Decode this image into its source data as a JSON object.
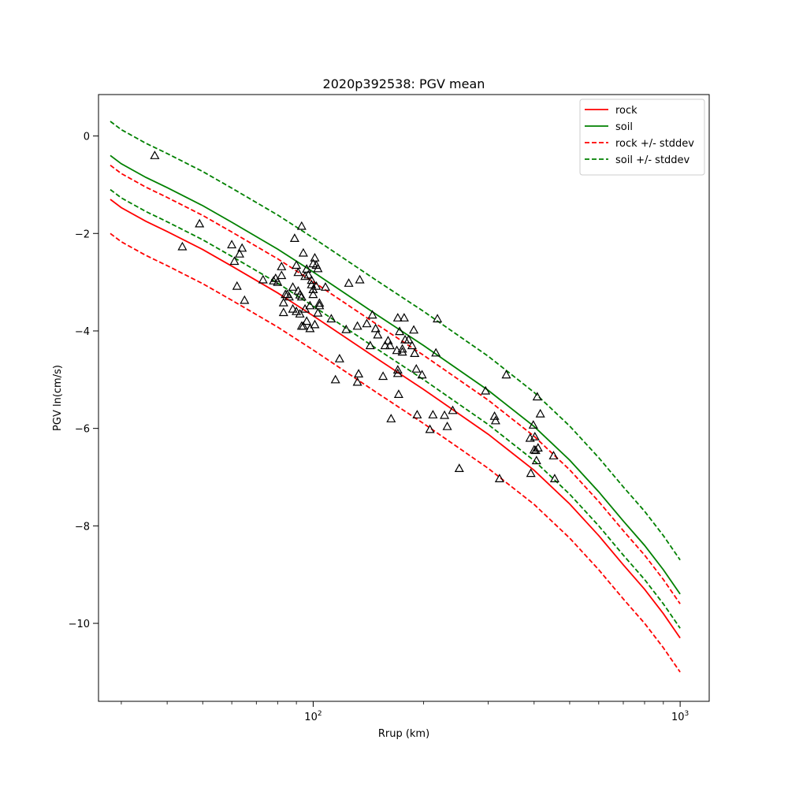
{
  "chart_data": {
    "type": "scatter",
    "title": "2020p392538: PGV mean",
    "xlabel": "Rrup (km)",
    "ylabel": "PGV ln(cm/s)",
    "xscale": "log",
    "xlim": [
      26,
      1200
    ],
    "ylim": [
      -11.6,
      0.85
    ],
    "x_ticks": [
      {
        "value": 100,
        "base": "10",
        "exp": "2"
      },
      {
        "value": 1000,
        "base": "10",
        "exp": "3"
      }
    ],
    "y_ticks": [
      {
        "value": 0,
        "label": "0"
      },
      {
        "value": -2,
        "label": "−2"
      },
      {
        "value": -4,
        "label": "−4"
      },
      {
        "value": -6,
        "label": "−6"
      },
      {
        "value": -8,
        "label": "−8"
      },
      {
        "value": -10,
        "label": "−10"
      }
    ],
    "grid": false,
    "legend_position": "top-right",
    "legend": [
      {
        "label": "rock",
        "color": "#ff0000",
        "dash": "solid"
      },
      {
        "label": "soil",
        "color": "#008000",
        "dash": "solid"
      },
      {
        "label": "rock +/- stddev",
        "color": "#ff0000",
        "dash": "dashed"
      },
      {
        "label": "soil +/- stddev",
        "color": "#008000",
        "dash": "dashed"
      }
    ],
    "lines": [
      {
        "role": "rock",
        "color": "#ff0000",
        "dash": "solid",
        "x": [
          28,
          30,
          35,
          40,
          50,
          60,
          80,
          100,
          150,
          200,
          300,
          400,
          500,
          600,
          700,
          800,
          900,
          1000
        ],
        "y": [
          -1.3,
          -1.47,
          -1.75,
          -1.96,
          -2.33,
          -2.67,
          -3.22,
          -3.69,
          -4.58,
          -5.2,
          -6.12,
          -6.86,
          -7.55,
          -8.2,
          -8.8,
          -9.3,
          -9.8,
          -10.3
        ]
      },
      {
        "role": "soil",
        "color": "#008000",
        "dash": "solid",
        "x": [
          28,
          30,
          35,
          40,
          50,
          60,
          80,
          100,
          150,
          200,
          300,
          400,
          500,
          600,
          700,
          800,
          900,
          1000
        ],
        "y": [
          -0.4,
          -0.57,
          -0.85,
          -1.06,
          -1.43,
          -1.77,
          -2.32,
          -2.79,
          -3.68,
          -4.3,
          -5.22,
          -5.96,
          -6.65,
          -7.3,
          -7.9,
          -8.4,
          -8.9,
          -9.4
        ]
      },
      {
        "role": "rock-plus-stddev",
        "color": "#ff0000",
        "dash": "dashed",
        "x": [
          28,
          30,
          35,
          40,
          50,
          60,
          80,
          100,
          150,
          200,
          300,
          400,
          500,
          600,
          700,
          800,
          900,
          1000
        ],
        "y": [
          -0.6,
          -0.77,
          -1.05,
          -1.26,
          -1.63,
          -1.97,
          -2.52,
          -2.99,
          -3.88,
          -4.5,
          -5.42,
          -6.16,
          -6.85,
          -7.5,
          -8.1,
          -8.6,
          -9.1,
          -9.6
        ]
      },
      {
        "role": "rock-minus-stddev",
        "color": "#ff0000",
        "dash": "dashed",
        "x": [
          28,
          30,
          35,
          40,
          50,
          60,
          80,
          100,
          150,
          200,
          300,
          400,
          500,
          600,
          700,
          800,
          900,
          1000
        ],
        "y": [
          -2.0,
          -2.17,
          -2.45,
          -2.66,
          -3.03,
          -3.37,
          -3.92,
          -4.39,
          -5.28,
          -5.9,
          -6.82,
          -7.56,
          -8.25,
          -8.9,
          -9.5,
          -10.0,
          -10.5,
          -11.0
        ]
      },
      {
        "role": "soil-plus-stddev",
        "color": "#008000",
        "dash": "dashed",
        "x": [
          28,
          30,
          35,
          40,
          50,
          60,
          80,
          100,
          150,
          200,
          300,
          400,
          500,
          600,
          700,
          800,
          900,
          1000
        ],
        "y": [
          0.3,
          0.13,
          -0.15,
          -0.36,
          -0.73,
          -1.07,
          -1.62,
          -2.09,
          -2.98,
          -3.6,
          -4.52,
          -5.26,
          -5.95,
          -6.6,
          -7.2,
          -7.7,
          -8.2,
          -8.7
        ]
      },
      {
        "role": "soil-minus-stddev",
        "color": "#008000",
        "dash": "dashed",
        "x": [
          28,
          30,
          35,
          40,
          50,
          60,
          80,
          100,
          150,
          200,
          300,
          400,
          500,
          600,
          700,
          800,
          900,
          1000
        ],
        "y": [
          -1.1,
          -1.27,
          -1.55,
          -1.76,
          -2.13,
          -2.47,
          -3.02,
          -3.49,
          -4.38,
          -5.0,
          -5.92,
          -6.66,
          -7.35,
          -8.0,
          -8.6,
          -9.1,
          -9.6,
          -10.1
        ]
      }
    ],
    "observations": {
      "marker": "triangle",
      "x": [
        37,
        44,
        49,
        60,
        61,
        62,
        63,
        64,
        65,
        73,
        78,
        79,
        80,
        82,
        82,
        83,
        83,
        84,
        85,
        86,
        88,
        88,
        89,
        90,
        90,
        91,
        91,
        92,
        92,
        93,
        93,
        93,
        94,
        94,
        95,
        95,
        96,
        96,
        97,
        98,
        98,
        99,
        99,
        100,
        100,
        100,
        101,
        101,
        102,
        102,
        103,
        103,
        104,
        104,
        108,
        112,
        115,
        118,
        123,
        125,
        132,
        132,
        133,
        134,
        140,
        143,
        145,
        148,
        150,
        155,
        157,
        160,
        162,
        163,
        169,
        170,
        170,
        170,
        171,
        172,
        175,
        175,
        177,
        178,
        182,
        186,
        188,
        189,
        191,
        192,
        198,
        208,
        212,
        216,
        218,
        228,
        232,
        240,
        250,
        295,
        312,
        314,
        322,
        336,
        390,
        392,
        398,
        400,
        402,
        404,
        406,
        408,
        410,
        416,
        452,
        455
      ],
      "y": [
        -0.4,
        -2.27,
        -1.8,
        -2.23,
        -2.57,
        -3.08,
        -2.42,
        -2.3,
        -3.37,
        -2.95,
        -2.97,
        -2.92,
        -3.0,
        -2.68,
        -2.86,
        -3.42,
        -3.62,
        -3.25,
        -3.25,
        -3.3,
        -3.55,
        -3.1,
        -2.1,
        -2.65,
        -3.6,
        -2.8,
        -3.18,
        -3.26,
        -3.65,
        -1.85,
        -3.3,
        -3.9,
        -2.4,
        -3.9,
        -2.88,
        -3.55,
        -2.73,
        -3.8,
        -2.85,
        -3.48,
        -3.95,
        -2.96,
        -3.05,
        -2.62,
        -3.15,
        -3.25,
        -2.5,
        -3.87,
        -2.65,
        -3.08,
        -2.72,
        -3.63,
        -3.43,
        -3.48,
        -3.1,
        -3.75,
        -5.0,
        -4.57,
        -3.97,
        -3.02,
        -5.05,
        -3.9,
        -4.88,
        -2.95,
        -3.85,
        -4.3,
        -3.67,
        -3.95,
        -4.08,
        -4.93,
        -4.3,
        -4.2,
        -4.3,
        -5.8,
        -4.4,
        -3.73,
        -4.8,
        -4.87,
        -5.3,
        -4.01,
        -4.43,
        -4.37,
        -3.73,
        -4.18,
        -4.18,
        -4.3,
        -3.98,
        -4.46,
        -4.78,
        -5.72,
        -4.9,
        -6.02,
        -5.72,
        -4.45,
        -3.75,
        -5.73,
        -5.96,
        -5.63,
        -6.82,
        -5.23,
        -5.75,
        -5.84,
        -7.03,
        -4.9,
        -6.2,
        -6.92,
        -5.93,
        -6.44,
        -6.17,
        -6.45,
        -6.66,
        -5.35,
        -6.4,
        -5.7,
        -6.56,
        -7.03
      ]
    }
  }
}
